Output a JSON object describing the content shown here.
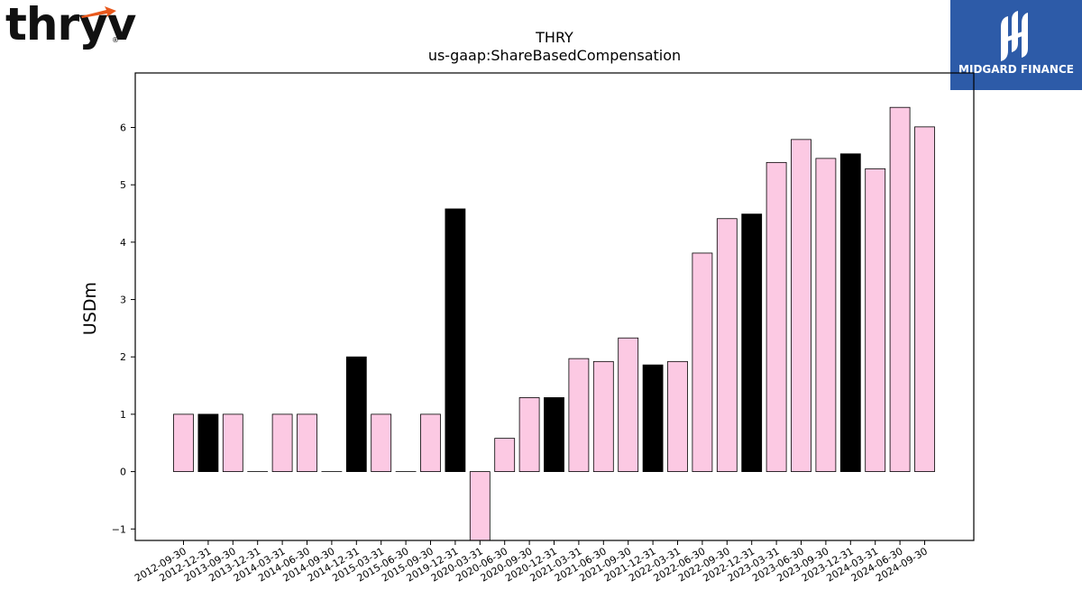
{
  "logos": {
    "left_text": "thryv",
    "left_mark": "®",
    "right_text": "MIDGARD FINANCE",
    "right_icon": "midgard-monogram-icon",
    "accent_orange": "#e8581c",
    "right_bg": "#2d5ba8"
  },
  "chart_data": {
    "type": "bar",
    "title": "THRY",
    "subtitle": "us-gaap:ShareBasedCompensation",
    "ylabel": "USDm",
    "xlabel": "",
    "ylim": [
      -1.2,
      6.95
    ],
    "yticks": [
      -1,
      0,
      1,
      2,
      3,
      4,
      5,
      6
    ],
    "grid": false,
    "colors": {
      "pink": "#fcc9e3",
      "black": "#000000"
    },
    "categories": [
      "2012-09-30",
      "2012-12-31",
      "2013-09-30",
      "2013-12-31",
      "2014-03-31",
      "2014-06-30",
      "2014-09-30",
      "2014-12-31",
      "2015-03-31",
      "2015-06-30",
      "2015-09-30",
      "2019-12-31",
      "2020-03-31",
      "2020-06-30",
      "2020-09-30",
      "2020-12-31",
      "2021-03-31",
      "2021-06-30",
      "2021-09-30",
      "2021-12-31",
      "2022-03-31",
      "2022-06-30",
      "2022-09-30",
      "2022-12-31",
      "2023-03-31",
      "2023-06-30",
      "2023-09-30",
      "2023-12-31",
      "2024-03-31",
      "2024-06-30",
      "2024-09-30"
    ],
    "values": [
      1.0,
      1.0,
      1.0,
      0.0,
      1.0,
      1.0,
      0.0,
      2.0,
      1.0,
      0.0,
      1.0,
      4.58,
      -1.22,
      0.58,
      1.29,
      1.29,
      1.97,
      1.92,
      2.33,
      1.86,
      1.92,
      3.81,
      4.41,
      4.49,
      5.39,
      5.79,
      5.46,
      5.54,
      5.28,
      6.35,
      6.01
    ],
    "bar_colors": [
      "pink",
      "black",
      "pink",
      "pink",
      "pink",
      "pink",
      "pink",
      "black",
      "pink",
      "pink",
      "pink",
      "black",
      "pink",
      "pink",
      "pink",
      "black",
      "pink",
      "pink",
      "pink",
      "black",
      "pink",
      "pink",
      "pink",
      "black",
      "pink",
      "pink",
      "pink",
      "black",
      "pink",
      "pink",
      "pink"
    ]
  }
}
